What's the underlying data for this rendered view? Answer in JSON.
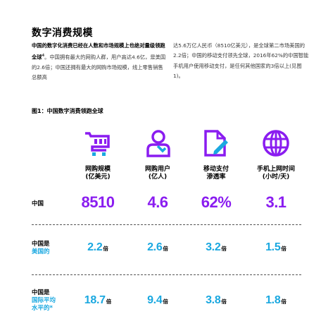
{
  "page": {
    "title": "数字消费规模"
  },
  "intro": {
    "lead": "中国的数字化消费已经在人数和市场规模上也绝对量级领跑全球",
    "superscript": "4",
    "body_part1": "。中国拥有最大的网购人群，用户高达4.6亿，是美国的2.6倍；中国还拥有最大的网购市场规模，线上零售销售总额高",
    "body_part2": "达5.6万亿人民币（8510亿美元），是全球第二市场美国的2.2倍；中国的移动支付领先全球，2016年62%的中国智能手机用户使用移动支付，是任何其他国家的3倍以上(见图1)。"
  },
  "figure": {
    "title": "图1：中国数字消费领跑全球",
    "columns": [
      {
        "icon": "shopping-cart-icon",
        "label_line1": "网购规模",
        "label_line2": "(亿美元)"
      },
      {
        "icon": "online-user-icon",
        "label_line1": "网购用户",
        "label_line2": "(亿人)"
      },
      {
        "icon": "mobile-payment-document-icon",
        "label_line1": "移动支付",
        "label_line2": "渗透率"
      },
      {
        "icon": "globe-icon",
        "label_line1": "手机上网时间",
        "label_line2": "(小时/天)"
      }
    ],
    "rows": [
      {
        "label_line1": "中国",
        "values": [
          "8510",
          "4.6",
          "62%",
          "3.1"
        ]
      },
      {
        "label_line1": "中国是",
        "label_line2": "美国的",
        "values": [
          "2.2",
          "2.6",
          "3.2",
          "1.5"
        ],
        "unit": "倍"
      },
      {
        "label_line1": "中国是",
        "label_line2": "国际平均",
        "label_line3": "水平的*",
        "values": [
          "18.7",
          "9.4",
          "3.8",
          "1.8"
        ],
        "unit": "倍"
      }
    ]
  },
  "colors": {
    "purple": "#8a1cf0",
    "blue": "#1aa8e0"
  }
}
